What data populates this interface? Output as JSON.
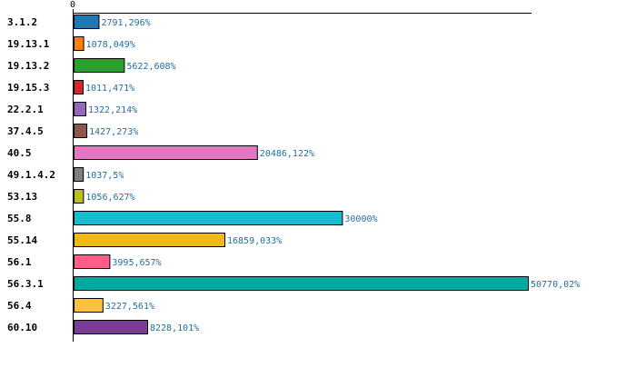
{
  "chart_data": {
    "type": "bar",
    "orientation": "horizontal",
    "x_ticks": [
      "0"
    ],
    "xlim": [
      0,
      51000
    ],
    "grid": false,
    "categories": [
      "3.1.2",
      "19.13.1",
      "19.13.2",
      "19.15.3",
      "22.2.1",
      "37.4.5",
      "40.5",
      "49.1.4.2",
      "53.13",
      "55.8",
      "55.14",
      "56.1",
      "56.3.1",
      "56.4",
      "60.10"
    ],
    "values": [
      2791.296,
      1078.049,
      5622.608,
      1011.471,
      1322.214,
      1427.273,
      20486.122,
      1037.5,
      1056.627,
      30000,
      16859.033,
      3995.657,
      50770.02,
      3227.561,
      8228.101
    ],
    "value_labels": [
      "2791,296%",
      "1078,049%",
      "5622,608%",
      "1011,471%",
      "1322,214%",
      "1427,273%",
      "20486,122%",
      "1037,5%",
      "1056,627%",
      "30000%",
      "16859,033%",
      "3995,657%",
      "50770,02%",
      "3227,561%",
      "8228,101%"
    ],
    "colors": [
      "#1f77b4",
      "#ff7f0e",
      "#2ca02c",
      "#d62728",
      "#9467bd",
      "#8c564b",
      "#e377c2",
      "#7f7f7f",
      "#bcbd22",
      "#17becf",
      "#f0b818",
      "#ff5c8a",
      "#00aaa0",
      "#ffc040",
      "#7a3c96"
    ]
  }
}
